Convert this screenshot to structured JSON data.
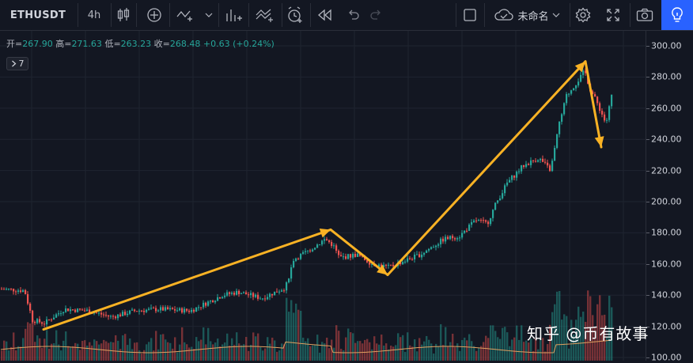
{
  "toolbar": {
    "symbol": "ETHUSDT",
    "interval": "4h",
    "layout_name": "未命名"
  },
  "legend": {
    "open_label": "开",
    "open": "267.90",
    "high_label": "高",
    "high": "271.63",
    "low_label": "低",
    "low": "263.23",
    "close_label": "收",
    "close": "268.48",
    "change": "+0.63 (+0.24%)"
  },
  "studies_badge": "7",
  "price_axis": {
    "ticks": [
      "300.00",
      "280.00",
      "260.00",
      "240.00",
      "220.00",
      "200.00",
      "180.00",
      "160.00",
      "140.00",
      "120.00",
      "100.00"
    ]
  },
  "chart_data": {
    "type": "candlestick",
    "pair": "ETHUSDT",
    "timeframe": "4h",
    "ylim": [
      100,
      305
    ],
    "price_path": [
      [
        0,
        144
      ],
      [
        30,
        143
      ],
      [
        40,
        124
      ],
      [
        55,
        122
      ],
      [
        80,
        131
      ],
      [
        110,
        130
      ],
      [
        140,
        126
      ],
      [
        170,
        130
      ],
      [
        200,
        131
      ],
      [
        240,
        130
      ],
      [
        280,
        140
      ],
      [
        300,
        142
      ],
      [
        330,
        138
      ],
      [
        360,
        145
      ],
      [
        370,
        163
      ],
      [
        390,
        169
      ],
      [
        410,
        176
      ],
      [
        420,
        172
      ],
      [
        428,
        164
      ],
      [
        450,
        166
      ],
      [
        470,
        160
      ],
      [
        490,
        158
      ],
      [
        510,
        162
      ],
      [
        530,
        166
      ],
      [
        560,
        176
      ],
      [
        580,
        178
      ],
      [
        600,
        188
      ],
      [
        615,
        186
      ],
      [
        625,
        198
      ],
      [
        640,
        212
      ],
      [
        660,
        223
      ],
      [
        680,
        228
      ],
      [
        695,
        220
      ],
      [
        705,
        248
      ],
      [
        715,
        268
      ],
      [
        730,
        278
      ],
      [
        738,
        284
      ],
      [
        745,
        272
      ],
      [
        755,
        262
      ],
      [
        765,
        250
      ],
      [
        772,
        268
      ]
    ],
    "annotation_arrows": [
      {
        "from": [
          55,
          118
        ],
        "to": [
          418,
          182
        ]
      },
      {
        "from": [
          418,
          182
        ],
        "to": [
          490,
          153
        ]
      },
      {
        "from": [
          490,
          153
        ],
        "to": [
          740,
          290
        ]
      },
      {
        "from": [
          740,
          290
        ],
        "to": [
          760,
          235
        ]
      }
    ],
    "colors": {
      "up": "#26a69a",
      "down": "#ef5350",
      "arrows": "#f9b224",
      "ma": "#e0a060"
    }
  },
  "watermark": "知乎 @币有故事"
}
